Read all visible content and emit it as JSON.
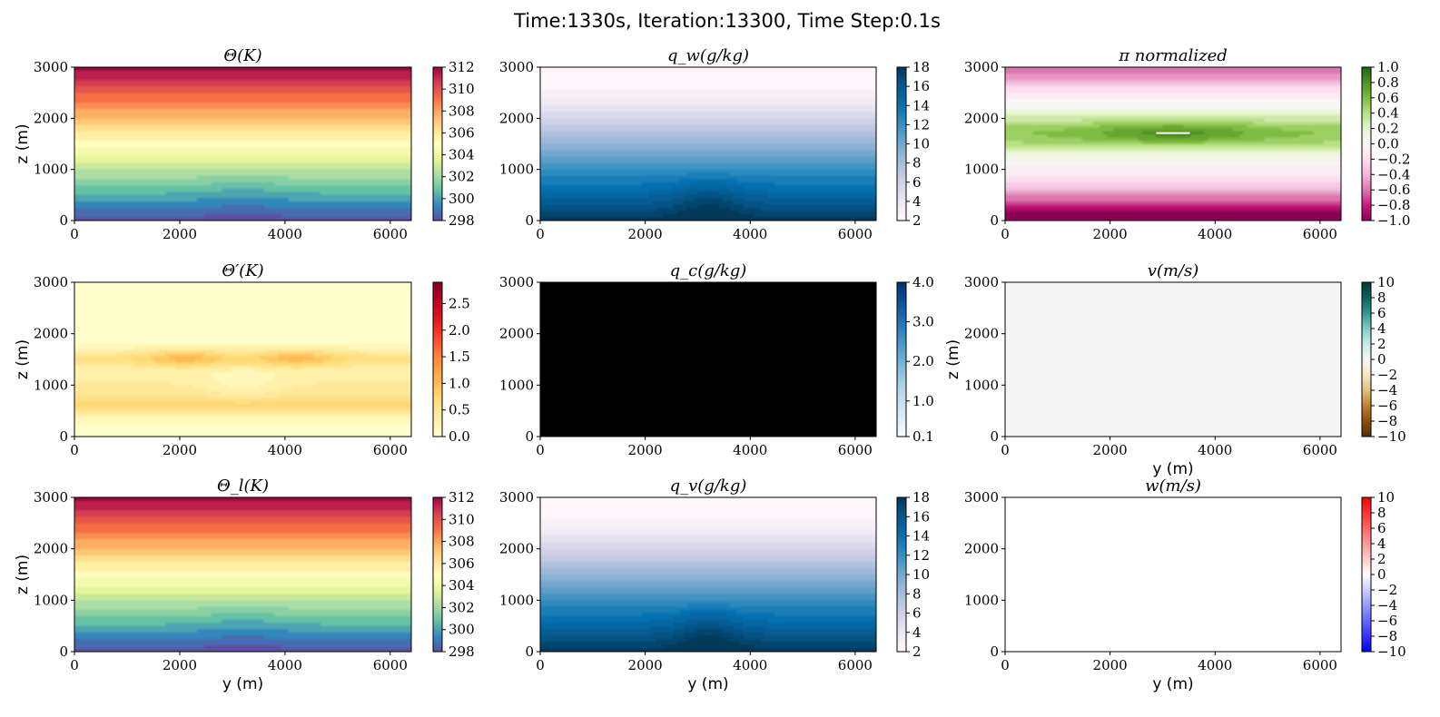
{
  "figure": {
    "suptitle": "Time:1330s, Iteration:13300, Time Step:0.1s"
  },
  "chart_data": [
    {
      "type": "heatmap",
      "title": "Θ(K)",
      "xlabel": "",
      "ylabel": "z (m)",
      "xlim": [
        0,
        6400
      ],
      "ylim": [
        0,
        3000
      ],
      "xticks": [
        "0",
        "2000",
        "4000",
        "6000"
      ],
      "yticks": [
        "0",
        "1000",
        "2000",
        "3000"
      ],
      "colormap": "Spectral_r",
      "colorbar": {
        "min": 298,
        "max": 312,
        "ticks": [
          "298",
          "300",
          "302",
          "304",
          "306",
          "308",
          "310",
          "312"
        ]
      },
      "field": "theta"
    },
    {
      "type": "heatmap",
      "title": "q_w(g/kg)",
      "xlabel": "",
      "ylabel": "",
      "xlim": [
        0,
        6400
      ],
      "ylim": [
        0,
        3000
      ],
      "xticks": [
        "0",
        "2000",
        "4000",
        "6000"
      ],
      "yticks": [
        "0",
        "1000",
        "2000",
        "3000"
      ],
      "colormap": "PuBu",
      "colorbar": {
        "min": 2,
        "max": 18,
        "ticks": [
          "2",
          "4",
          "6",
          "8",
          "10",
          "12",
          "14",
          "16",
          "18"
        ]
      },
      "field": "qw"
    },
    {
      "type": "heatmap",
      "title": "π normalized",
      "xlabel": "",
      "ylabel": "",
      "xlim": [
        0,
        6400
      ],
      "ylim": [
        0,
        3000
      ],
      "xticks": [
        "0",
        "2000",
        "4000",
        "6000"
      ],
      "yticks": [
        "0",
        "1000",
        "2000",
        "3000"
      ],
      "colormap": "PiYG",
      "colorbar": {
        "min": -1.0,
        "max": 1.0,
        "ticks": [
          "−1.0",
          "−0.8",
          "−0.6",
          "−0.4",
          "−0.2",
          "0.0",
          "0.2",
          "0.4",
          "0.6",
          "0.8",
          "1.0"
        ]
      },
      "field": "pi"
    },
    {
      "type": "heatmap",
      "title": "Θ′(K)",
      "xlabel": "",
      "ylabel": "z (m)",
      "xlim": [
        0,
        6400
      ],
      "ylim": [
        0,
        3000
      ],
      "xticks": [
        "0",
        "2000",
        "4000",
        "6000"
      ],
      "yticks": [
        "0",
        "1000",
        "2000",
        "3000"
      ],
      "colormap": "YlOrRd",
      "colorbar": {
        "min": 0.0,
        "max": 2.9,
        "ticks": [
          "0.0",
          "0.5",
          "1.0",
          "1.5",
          "2.0",
          "2.5"
        ]
      },
      "field": "thetap"
    },
    {
      "type": "heatmap",
      "title": "q_c(g/kg)",
      "xlabel": "",
      "ylabel": "",
      "xlim": [
        0,
        6400
      ],
      "ylim": [
        0,
        3000
      ],
      "xticks": [
        "0",
        "2000",
        "4000",
        "6000"
      ],
      "yticks": [
        "0",
        "1000",
        "2000",
        "3000"
      ],
      "colormap": "Blues",
      "colorbar": {
        "min": 0.1,
        "max": 4.0,
        "ticks": [
          "0.1",
          "1.0",
          "2.0",
          "3.0",
          "4.0"
        ]
      },
      "field": "qc"
    },
    {
      "type": "heatmap",
      "title": "v(m/s)",
      "xlabel": "y (m)",
      "ylabel": "z (m)",
      "xlim": [
        0,
        6400
      ],
      "ylim": [
        0,
        3000
      ],
      "xticks": [
        "0",
        "2000",
        "4000",
        "6000"
      ],
      "yticks": [
        "0",
        "1000",
        "2000",
        "3000"
      ],
      "colormap": "BrBG",
      "colorbar": {
        "min": -10,
        "max": 10,
        "ticks": [
          "−10",
          "−8",
          "−6",
          "−4",
          "−2",
          "0",
          "2",
          "4",
          "6",
          "8",
          "10"
        ]
      },
      "field": "v"
    },
    {
      "type": "heatmap",
      "title": "Θ_l(K)",
      "xlabel": "y (m)",
      "ylabel": "z (m)",
      "xlim": [
        0,
        6400
      ],
      "ylim": [
        0,
        3000
      ],
      "xticks": [
        "0",
        "2000",
        "4000",
        "6000"
      ],
      "yticks": [
        "0",
        "1000",
        "2000",
        "3000"
      ],
      "colormap": "Spectral_r",
      "colorbar": {
        "min": 298,
        "max": 312,
        "ticks": [
          "298",
          "300",
          "302",
          "304",
          "306",
          "308",
          "310",
          "312"
        ]
      },
      "field": "theta"
    },
    {
      "type": "heatmap",
      "title": "q_v(g/kg)",
      "xlabel": "y (m)",
      "ylabel": "",
      "xlim": [
        0,
        6400
      ],
      "ylim": [
        0,
        3000
      ],
      "xticks": [
        "0",
        "2000",
        "4000",
        "6000"
      ],
      "yticks": [
        "0",
        "1000",
        "2000",
        "3000"
      ],
      "colormap": "PuBu",
      "colorbar": {
        "min": 2,
        "max": 18,
        "ticks": [
          "2",
          "4",
          "6",
          "8",
          "10",
          "12",
          "14",
          "16",
          "18"
        ]
      },
      "field": "qw"
    },
    {
      "type": "heatmap",
      "title": "w(m/s)",
      "xlabel": "y (m)",
      "ylabel": "",
      "xlim": [
        0,
        6400
      ],
      "ylim": [
        0,
        3000
      ],
      "xticks": [
        "0",
        "2000",
        "4000",
        "6000"
      ],
      "yticks": [
        "0",
        "1000",
        "2000",
        "3000"
      ],
      "colormap": "bwr",
      "colorbar": {
        "min": -10,
        "max": 10,
        "ticks": [
          "−10",
          "−8",
          "−6",
          "−4",
          "−2",
          "0",
          "2",
          "4",
          "6",
          "8",
          "10"
        ]
      },
      "field": "w"
    }
  ]
}
